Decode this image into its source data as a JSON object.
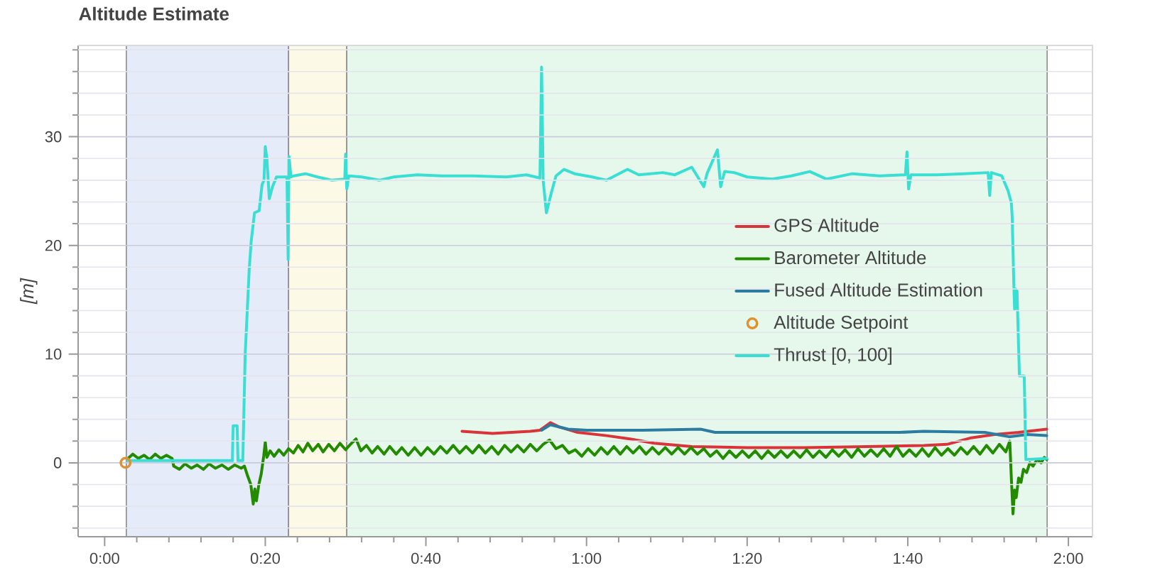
{
  "chart_data": {
    "type": "line",
    "title": "Altitude Estimate",
    "ylabel": "[m]",
    "xlim": [
      -3.3,
      123
    ],
    "ylim": [
      -6.8,
      38.4
    ],
    "xticks": [
      {
        "value": 0,
        "label": "0:00"
      },
      {
        "value": 4,
        "label": null
      },
      {
        "value": 8,
        "label": null
      },
      {
        "value": 12,
        "label": null
      },
      {
        "value": 16,
        "label": null
      },
      {
        "value": 20,
        "label": "0:20"
      },
      {
        "value": 24,
        "label": null
      },
      {
        "value": 28,
        "label": null
      },
      {
        "value": 32,
        "label": null
      },
      {
        "value": 36,
        "label": null
      },
      {
        "value": 40,
        "label": "0:40"
      },
      {
        "value": 44,
        "label": null
      },
      {
        "value": 48,
        "label": null
      },
      {
        "value": 52,
        "label": null
      },
      {
        "value": 56,
        "label": null
      },
      {
        "value": 60,
        "label": "1:00"
      },
      {
        "value": 64,
        "label": null
      },
      {
        "value": 68,
        "label": null
      },
      {
        "value": 72,
        "label": null
      },
      {
        "value": 76,
        "label": null
      },
      {
        "value": 80,
        "label": "1:20"
      },
      {
        "value": 84,
        "label": null
      },
      {
        "value": 88,
        "label": null
      },
      {
        "value": 92,
        "label": null
      },
      {
        "value": 96,
        "label": null
      },
      {
        "value": 100,
        "label": "1:40"
      },
      {
        "value": 104,
        "label": null
      },
      {
        "value": 108,
        "label": null
      },
      {
        "value": 112,
        "label": null
      },
      {
        "value": 116,
        "label": null
      },
      {
        "value": 120,
        "label": "2:00"
      }
    ],
    "yticks": [
      {
        "value": -6,
        "label": null
      },
      {
        "value": -4,
        "label": null
      },
      {
        "value": -2,
        "label": null
      },
      0,
      {
        "value": 2,
        "label": null
      },
      {
        "value": 4,
        "label": null
      },
      {
        "value": 6,
        "label": null
      },
      {
        "value": 8,
        "label": null
      },
      10,
      {
        "value": 12,
        "label": null
      },
      {
        "value": 14,
        "label": null
      },
      {
        "value": 16,
        "label": null
      },
      {
        "value": 18,
        "label": null
      },
      20,
      {
        "value": 22,
        "label": null
      },
      {
        "value": 24,
        "label": null
      },
      {
        "value": 26,
        "label": null
      },
      {
        "value": 28,
        "label": null
      },
      30,
      {
        "value": 32,
        "label": null
      },
      {
        "value": 34,
        "label": null
      },
      {
        "value": 36,
        "label": null
      },
      {
        "value": 38,
        "label": null
      }
    ],
    "grid": "y",
    "legend": "right",
    "bands": [
      {
        "axis": "x",
        "from": 2.7,
        "to": 22.9,
        "color": "#e5ebf8"
      },
      {
        "axis": "x",
        "from": 22.9,
        "to": 30.15,
        "color": "#fcf9e6"
      },
      {
        "axis": "x",
        "from": 30.15,
        "to": 117.35,
        "color": "#e6f8ec"
      }
    ],
    "series": [
      {
        "name": "GPS Altitude",
        "color": "#d8343a",
        "x": [
          44.5,
          48.3,
          53.0,
          54.2,
          55.5,
          56.6,
          58.9,
          62.5,
          65.4,
          68.4,
          73.1,
          80.0,
          87.2,
          95.0,
          102.0,
          104.9,
          107.9,
          110.8,
          113.8,
          117.3
        ],
        "values": [
          2.9,
          2.7,
          2.9,
          3.0,
          3.7,
          3.3,
          2.8,
          2.5,
          2.2,
          1.8,
          1.5,
          1.4,
          1.4,
          1.5,
          1.6,
          1.7,
          2.3,
          2.6,
          2.8,
          3.1
        ]
      },
      {
        "name": "Barometer Altitude",
        "color": "#228b00",
        "x": [
          2.9,
          3.5,
          4.2,
          4.9,
          5.6,
          6.3,
          7.0,
          7.7,
          8.4,
          8.6,
          9.3,
          10.0,
          10.8,
          11.5,
          12.3,
          13.0,
          13.8,
          14.6,
          15.4,
          16.2,
          17.0,
          17.4,
          17.8,
          18.2,
          18.5,
          18.7,
          18.9,
          19.2,
          19.5,
          19.8,
          20.0,
          20.2,
          20.6,
          21.1,
          21.7,
          22.3,
          22.9,
          23.5,
          24.1,
          24.7,
          25.3,
          25.9,
          26.6,
          27.2,
          27.9,
          28.6,
          29.3,
          30.0,
          30.6,
          31.3,
          31.9,
          32.6,
          33.3,
          34.0,
          34.8,
          35.5,
          36.3,
          37.0,
          37.8,
          38.6,
          39.4,
          40.2,
          41.0,
          41.8,
          42.6,
          43.4,
          44.2,
          45.0,
          45.8,
          46.6,
          47.4,
          48.2,
          49.0,
          49.8,
          50.6,
          51.4,
          52.2,
          53.0,
          53.8,
          54.6,
          55.4,
          56.2,
          57.0,
          57.8,
          58.6,
          59.4,
          60.2,
          61.0,
          61.8,
          62.6,
          63.4,
          64.2,
          65.0,
          65.8,
          66.6,
          67.4,
          68.2,
          69.0,
          69.8,
          70.6,
          71.4,
          72.2,
          73.0,
          73.8,
          74.6,
          75.4,
          76.2,
          77.0,
          77.8,
          78.6,
          79.4,
          80.2,
          81.0,
          81.8,
          82.6,
          83.4,
          84.2,
          85.0,
          85.8,
          86.6,
          87.4,
          88.2,
          89.0,
          89.8,
          90.6,
          91.4,
          92.2,
          93.0,
          93.8,
          94.6,
          95.4,
          96.2,
          97.0,
          97.8,
          98.6,
          99.4,
          100.2,
          101.0,
          101.8,
          102.6,
          103.4,
          104.2,
          105.0,
          105.8,
          106.6,
          107.4,
          108.2,
          109.0,
          109.8,
          110.6,
          111.4,
          112.2,
          112.7,
          112.9,
          113.1,
          113.3,
          113.5,
          113.8,
          114.1,
          114.4,
          114.8,
          115.2,
          115.6,
          116.1,
          116.6,
          117.0,
          117.3
        ],
        "values": [
          0.4,
          0.8,
          0.4,
          0.7,
          0.3,
          0.8,
          0.4,
          0.7,
          0.4,
          -0.3,
          -0.6,
          -0.1,
          -0.5,
          -0.2,
          -0.6,
          -0.1,
          -0.5,
          -0.2,
          -0.6,
          -0.2,
          -0.5,
          -0.3,
          -1.2,
          -2.0,
          -3.8,
          -2.4,
          -3.5,
          -2.0,
          -1.0,
          0.6,
          1.9,
          0.5,
          1.1,
          0.6,
          1.2,
          0.7,
          1.3,
          0.9,
          1.6,
          1.0,
          1.8,
          1.1,
          1.7,
          1.0,
          1.7,
          1.1,
          1.8,
          1.2,
          1.7,
          2.2,
          1.1,
          1.6,
          0.9,
          1.5,
          0.8,
          1.5,
          0.8,
          1.4,
          0.7,
          1.4,
          0.7,
          1.4,
          0.8,
          1.5,
          0.9,
          1.6,
          0.9,
          1.5,
          0.9,
          1.6,
          0.9,
          1.5,
          0.8,
          1.6,
          1.0,
          1.6,
          1.0,
          1.7,
          1.1,
          1.7,
          2.1,
          1.3,
          1.6,
          0.9,
          1.2,
          0.6,
          1.3,
          0.7,
          1.4,
          0.8,
          1.5,
          0.8,
          1.5,
          0.9,
          1.5,
          0.8,
          1.4,
          0.8,
          1.4,
          0.8,
          1.4,
          0.8,
          1.4,
          0.8,
          1.3,
          0.6,
          1.1,
          0.4,
          1.1,
          0.5,
          1.1,
          0.5,
          1.1,
          0.4,
          1.1,
          0.5,
          1.1,
          0.5,
          1.1,
          0.5,
          1.2,
          0.5,
          1.1,
          0.5,
          1.2,
          0.6,
          1.2,
          0.5,
          1.3,
          0.6,
          1.2,
          0.6,
          1.3,
          0.6,
          1.5,
          0.6,
          1.2,
          0.6,
          1.3,
          0.6,
          1.4,
          0.7,
          1.3,
          0.7,
          1.4,
          0.8,
          1.5,
          0.8,
          1.6,
          0.9,
          1.7,
          1.0,
          2.0,
          -1.5,
          -4.7,
          -2.5,
          -3.2,
          -1.4,
          -1.8,
          -0.6,
          -0.9,
          0.0,
          -0.3,
          0.3,
          0.0,
          0.5,
          0.3
        ]
      },
      {
        "name": "Fused Altitude Estimation",
        "color": "#2b7ca0",
        "x": [
          54.4,
          55.5,
          57.7,
          60.1,
          67.0,
          74.2,
          76.0,
          85.0,
          99.0,
          102.0,
          109.6,
          112.6,
          114.9,
          117.3
        ],
        "values": [
          3.0,
          3.5,
          3.1,
          3.0,
          3.0,
          3.1,
          2.8,
          2.8,
          2.8,
          2.9,
          2.8,
          2.4,
          2.6,
          2.5
        ]
      },
      {
        "name": "Altitude Setpoint",
        "type": "scatter",
        "marker": "circle",
        "color": "#e0902e",
        "x": [
          2.6
        ],
        "values": [
          0
        ]
      },
      {
        "name": "Thrust [0, 100]",
        "color": "#3adfd4",
        "x": [
          2.9,
          15.9,
          16.0,
          16.5,
          16.6,
          17.2,
          17.5,
          18.0,
          18.25,
          18.66,
          19.24,
          19.6,
          19.84,
          20.0,
          20.2,
          20.5,
          20.9,
          21.4,
          22.7,
          22.85,
          22.95,
          23.2,
          23.55,
          25.0,
          26.5,
          28.3,
          29.9,
          30.0,
          30.15,
          30.4,
          32.0,
          34.2,
          36.0,
          38.9,
          42.0,
          45.9,
          50.0,
          52.5,
          54.2,
          54.4,
          54.6,
          55.0,
          55.6,
          56.2,
          57.2,
          58.5,
          60.7,
          62.5,
          65.1,
          66.5,
          69.5,
          71.0,
          73.1,
          74.6,
          75.0,
          76.3,
          76.7,
          77.2,
          78.4,
          80.0,
          83.1,
          85.5,
          87.8,
          89.9,
          93.1,
          96.5,
          99.7,
          99.9,
          100.1,
          100.4,
          103.7,
          107.0,
          110.0,
          110.2,
          110.4,
          111.7,
          112.5,
          112.9,
          113.0,
          113.2,
          113.3,
          113.4,
          113.6,
          113.9,
          114.5,
          114.7,
          117.3
        ],
        "values": [
          0.2,
          0.2,
          3.4,
          3.4,
          0.2,
          0.2,
          10.0,
          17.8,
          20.4,
          23.0,
          23.2,
          25.6,
          26.0,
          29.1,
          28.0,
          24.3,
          25.4,
          26.3,
          26.3,
          18.7,
          28.2,
          26.3,
          26.4,
          26.6,
          26.3,
          26.0,
          26.1,
          28.4,
          25.2,
          26.4,
          26.3,
          26.0,
          26.3,
          26.5,
          26.4,
          26.4,
          26.3,
          26.5,
          26.2,
          36.4,
          26.0,
          23.0,
          24.8,
          26.4,
          27.0,
          26.6,
          26.3,
          26.0,
          27.0,
          26.5,
          26.7,
          26.5,
          27.2,
          25.4,
          26.6,
          28.8,
          25.4,
          26.8,
          26.7,
          26.3,
          26.1,
          26.4,
          26.8,
          26.1,
          26.6,
          26.4,
          26.5,
          28.6,
          25.2,
          26.5,
          26.5,
          26.6,
          26.7,
          24.6,
          26.7,
          26.4,
          25.0,
          23.9,
          22.6,
          16.5,
          14.1,
          16.0,
          15.8,
          8.0,
          8.0,
          0.3,
          0.4
        ]
      }
    ]
  }
}
